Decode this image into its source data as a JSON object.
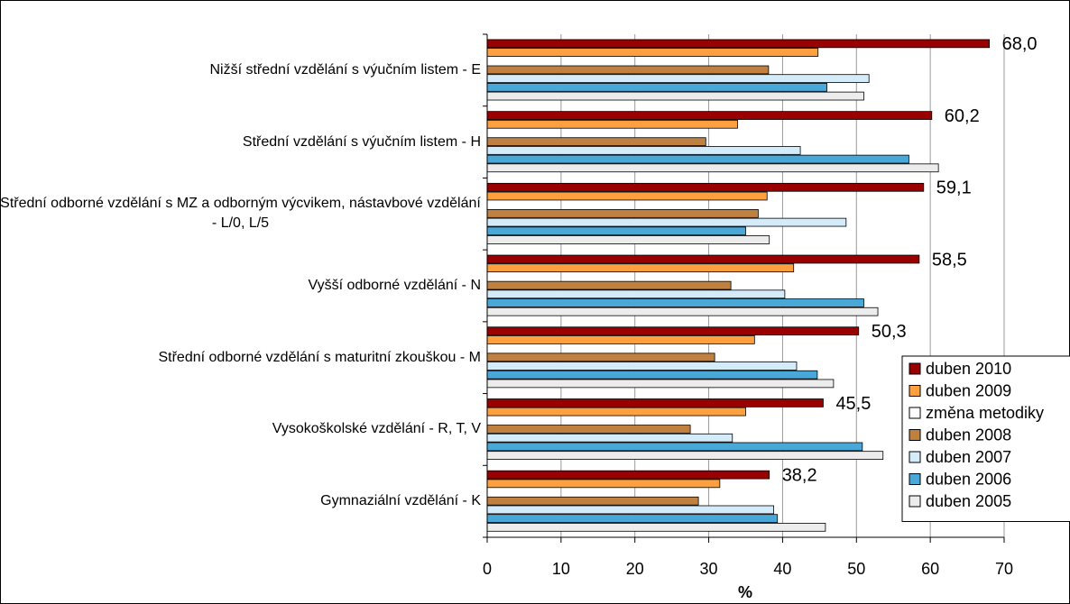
{
  "chart_data": {
    "type": "bar",
    "orientation": "horizontal",
    "categories": [
      "Nižší střední vzdělání s výučním listem - E",
      "Střední vzdělání s výučním listem - H",
      "Střední odborné vzdělání s MZ a odborným výcvikem, nástavbové vzdělání - L/0, L/5",
      "Vyšší odborné vzdělání - N",
      "Střední odborné vzdělání s maturitní zkouškou - M",
      "Vysokoškolské vzdělání - R, T, V",
      "Gymnaziální vzdělání - K"
    ],
    "series": [
      {
        "name": "duben 2010",
        "color": "#990000",
        "values": [
          68.0,
          60.2,
          59.1,
          58.5,
          50.3,
          45.5,
          38.2
        ],
        "value_labels": [
          "68,0",
          "60,2",
          "59,1",
          "58,5",
          "50,3",
          "45,5",
          "38,2"
        ]
      },
      {
        "name": "duben 2009",
        "color": "#ffa040",
        "values": [
          44.8,
          33.9,
          37.9,
          41.5,
          36.2,
          35.0,
          31.5
        ]
      },
      {
        "name": "změna metodiky",
        "color": "#ffffff",
        "values": [
          null,
          null,
          null,
          null,
          null,
          null,
          null
        ]
      },
      {
        "name": "duben 2008",
        "color": "#c08040",
        "values": [
          38.1,
          29.6,
          36.7,
          33.0,
          30.8,
          27.5,
          28.6
        ]
      },
      {
        "name": "duben 2007",
        "color": "#d4ecfa",
        "values": [
          51.7,
          42.4,
          48.6,
          40.3,
          41.9,
          33.2,
          38.8
        ]
      },
      {
        "name": "duben 2006",
        "color": "#4aa8d8",
        "values": [
          46.0,
          57.1,
          35.0,
          51.0,
          44.7,
          50.8,
          39.3
        ]
      },
      {
        "name": "duben 2005",
        "color": "#ececec",
        "values": [
          51.0,
          61.1,
          38.2,
          52.9,
          46.9,
          53.6,
          45.8
        ]
      }
    ],
    "xlabel": "%",
    "xlim": [
      0,
      70
    ],
    "xticks": [
      0,
      10,
      20,
      30,
      40,
      50,
      60,
      70
    ],
    "grid": true,
    "legend": "right"
  }
}
